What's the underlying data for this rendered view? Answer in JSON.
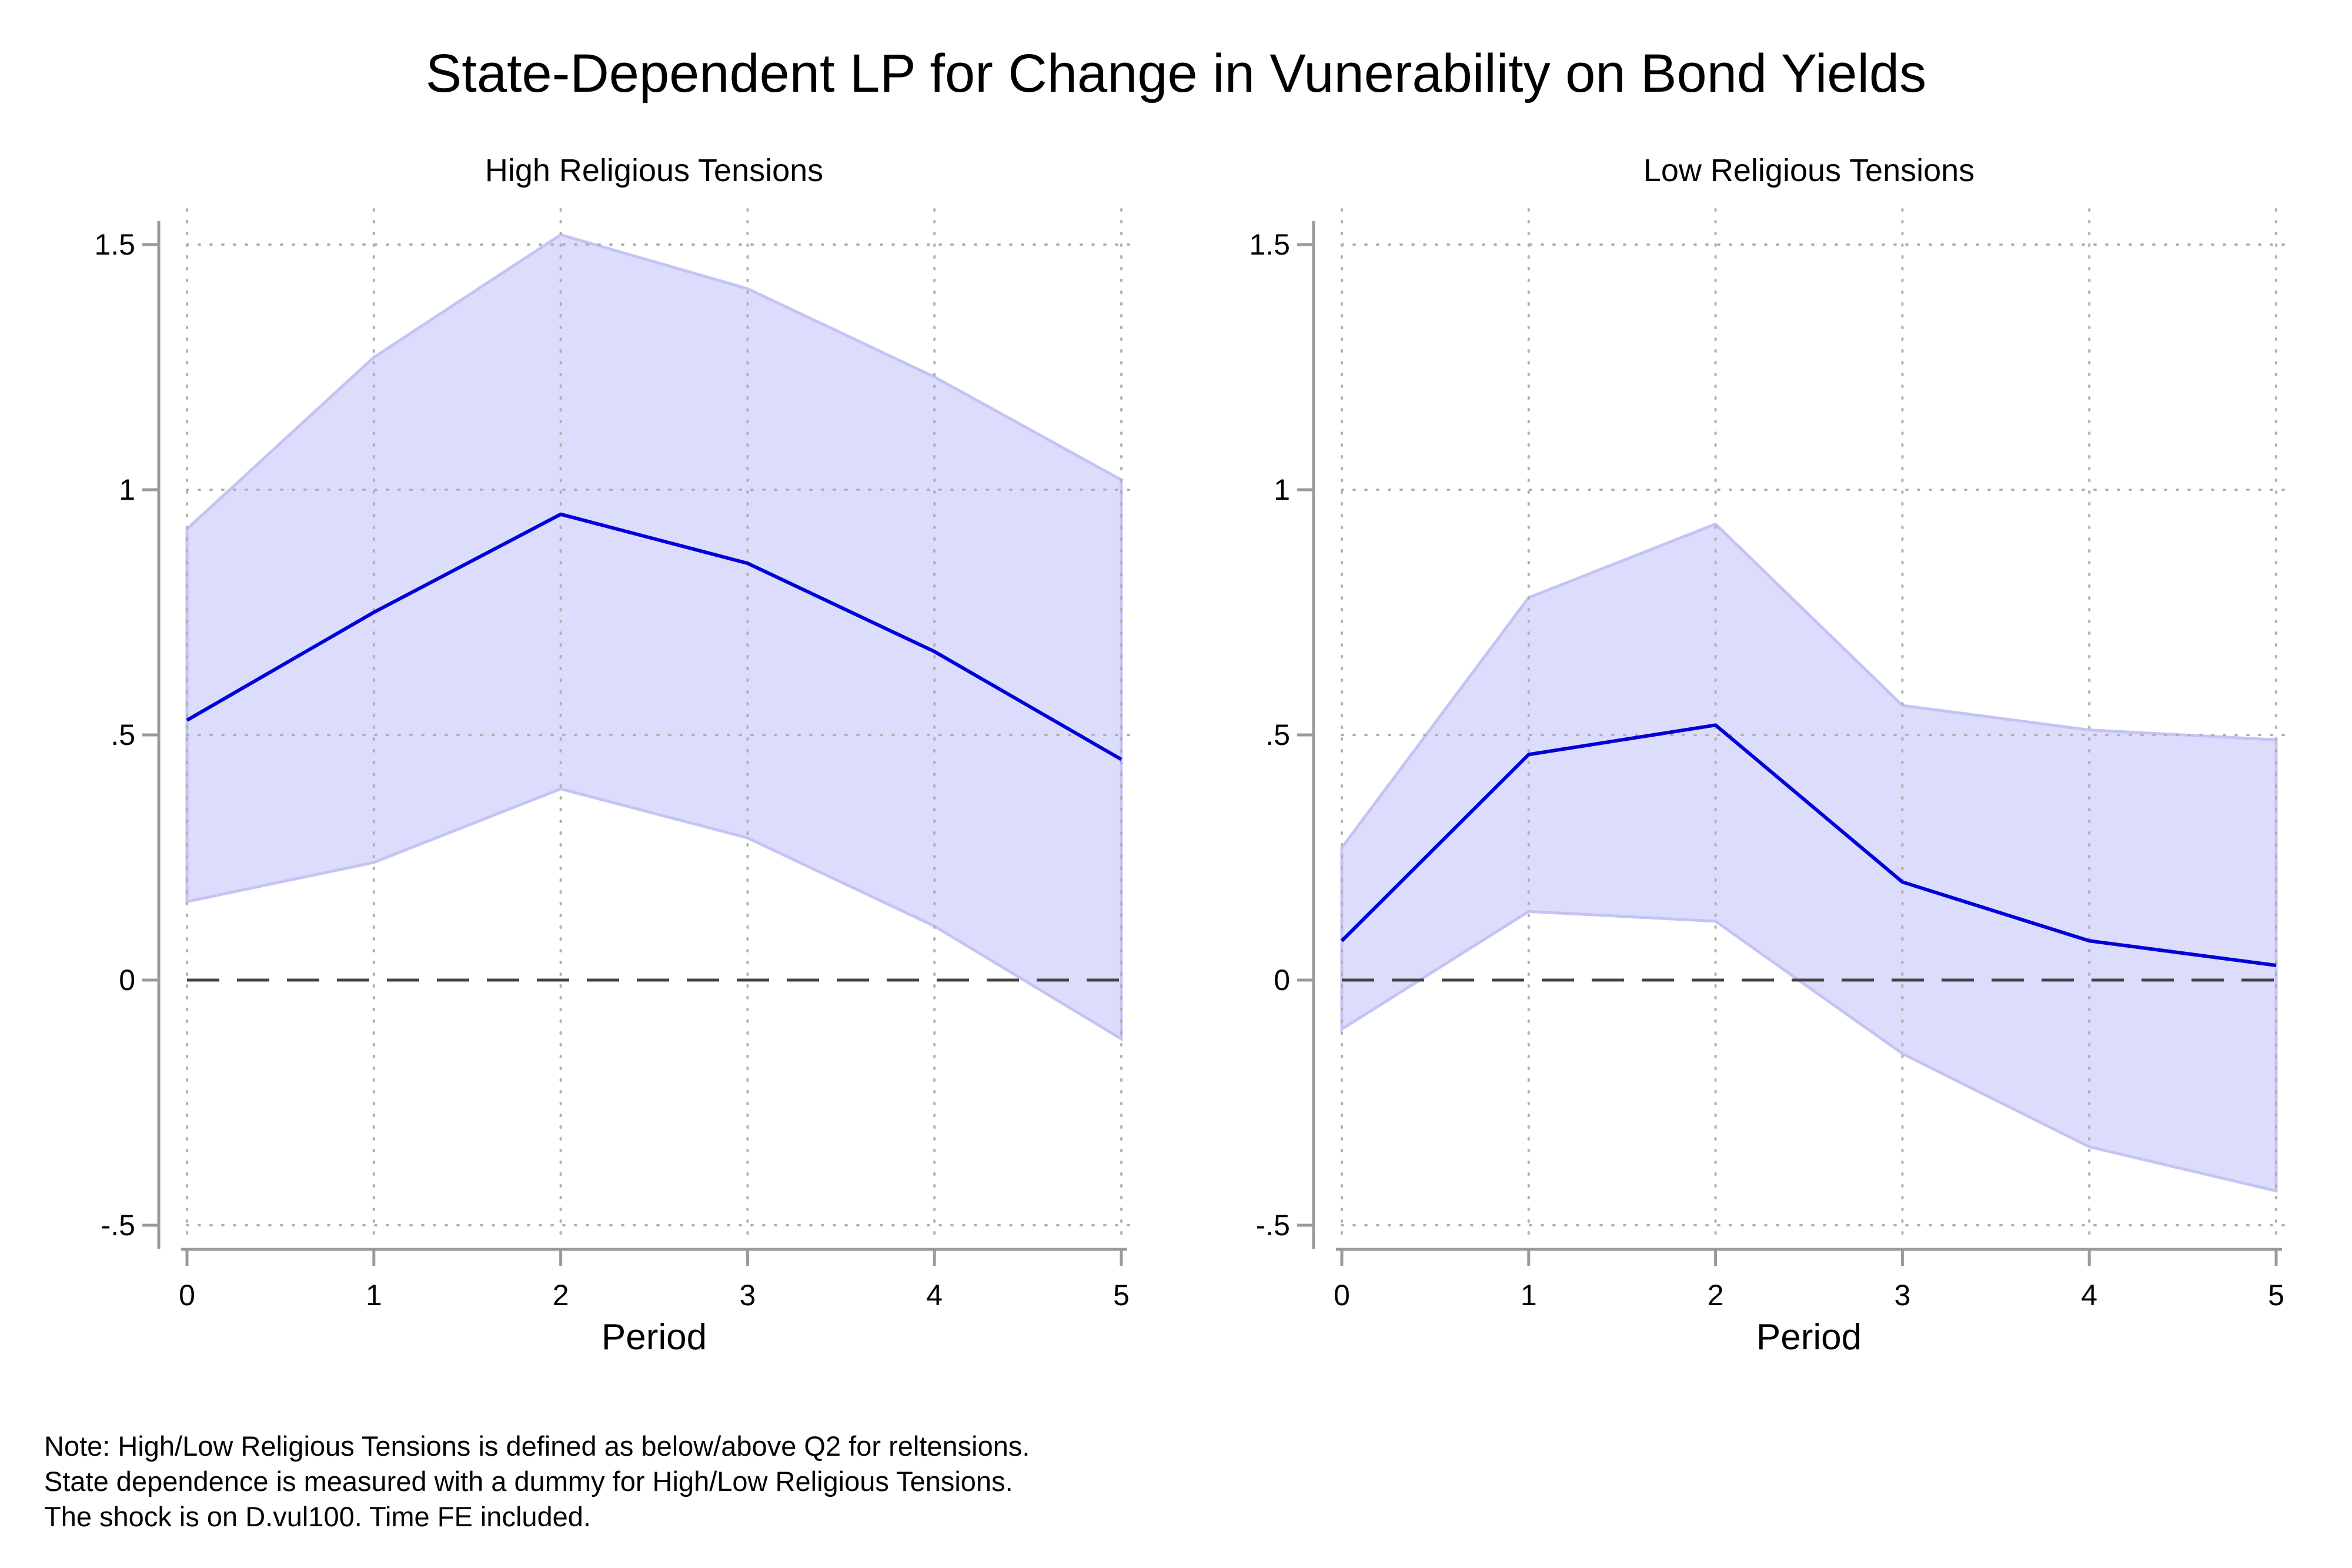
{
  "figure": {
    "title": "State-Dependent LP for Change in Vunerability on Bond Yields",
    "notes": [
      "Note: High/Low Religious Tensions is defined as below/above Q2 for reltensions.",
      "State dependence is measured with a dummy for High/Low Religious Tensions.",
      "The shock is on D.vul100. Time FE included."
    ],
    "colors": {
      "line": "#0000d8",
      "band": "#dcdcfc",
      "band_edge": "#c4c4f4",
      "zero_line": "#444444",
      "grid": "#b0b0b0",
      "axis": "#9a9a9a"
    }
  },
  "chart_data": [
    {
      "type": "area",
      "title": "High Religious Tensions",
      "xlabel": "Period",
      "ylabel": "",
      "x": [
        0,
        1,
        2,
        3,
        4,
        5
      ],
      "series": [
        {
          "role": "estimate",
          "values": [
            0.53,
            0.75,
            0.95,
            0.85,
            0.67,
            0.45
          ]
        },
        {
          "role": "upper",
          "values": [
            0.92,
            1.27,
            1.52,
            1.41,
            1.23,
            1.02
          ]
        },
        {
          "role": "lower",
          "values": [
            0.16,
            0.24,
            0.39,
            0.29,
            0.11,
            -0.12
          ]
        }
      ],
      "xticks": [
        "0",
        "1",
        "2",
        "3",
        "4",
        "5"
      ],
      "yticks": [
        {
          "value": 1.5,
          "label": "1.5"
        },
        {
          "value": 1,
          "label": "1"
        },
        {
          "value": 0.5,
          "label": ".5"
        },
        {
          "value": 0,
          "label": "0"
        },
        {
          "value": -0.5,
          "label": "-.5"
        }
      ],
      "xlim": [
        0,
        5
      ],
      "ylim": [
        -0.55,
        1.55
      ],
      "grid": true,
      "reference_line": 0
    },
    {
      "type": "area",
      "title": "Low Religious Tensions",
      "xlabel": "Period",
      "ylabel": "",
      "x": [
        0,
        1,
        2,
        3,
        4,
        5
      ],
      "series": [
        {
          "role": "estimate",
          "values": [
            0.08,
            0.46,
            0.52,
            0.2,
            0.08,
            0.03
          ]
        },
        {
          "role": "upper",
          "values": [
            0.27,
            0.78,
            0.93,
            0.56,
            0.51,
            0.49
          ]
        },
        {
          "role": "lower",
          "values": [
            -0.1,
            0.14,
            0.12,
            -0.15,
            -0.34,
            -0.43
          ]
        }
      ],
      "xticks": [
        "0",
        "1",
        "2",
        "3",
        "4",
        "5"
      ],
      "yticks": [
        {
          "value": 1.5,
          "label": "1.5"
        },
        {
          "value": 1,
          "label": "1"
        },
        {
          "value": 0.5,
          "label": ".5"
        },
        {
          "value": 0,
          "label": "0"
        },
        {
          "value": -0.5,
          "label": "-.5"
        }
      ],
      "xlim": [
        0,
        5
      ],
      "ylim": [
        -0.55,
        1.55
      ],
      "grid": true,
      "reference_line": 0
    }
  ]
}
